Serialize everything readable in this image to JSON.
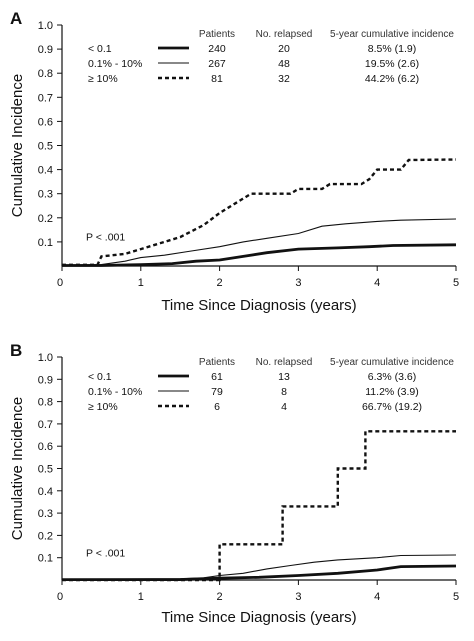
{
  "colors": {
    "line": "#111111",
    "axis": "#111111",
    "background": "#ffffff"
  },
  "chart_data": [
    {
      "type": "line",
      "panel": "A",
      "xlabel": "Time Since Diagnosis (years)",
      "ylabel": "Cumulative Incidence",
      "xlim": [
        0,
        5
      ],
      "ylim": [
        0,
        1.0
      ],
      "x_ticks": [
        "0",
        "1",
        "2",
        "3",
        "4",
        "5"
      ],
      "y_ticks": [
        "0.1",
        "0.2",
        "0.3",
        "0.4",
        "0.5",
        "0.6",
        "0.7",
        "0.8",
        "0.9",
        "1.0"
      ],
      "grid": false,
      "pvalue": "P < .001",
      "table_headers": [
        "Patients",
        "No. relapsed",
        "5-year cumulative incidence"
      ],
      "series": [
        {
          "name": "< 0.1",
          "line_style": "thick",
          "patients": "240",
          "relapsed": "20",
          "incidence": "8.5% (1.9)",
          "points": [
            [
              0,
              0.002
            ],
            [
              0.5,
              0.002
            ],
            [
              1.0,
              0.006
            ],
            [
              1.4,
              0.01
            ],
            [
              1.7,
              0.02
            ],
            [
              2.0,
              0.025
            ],
            [
              2.3,
              0.04
            ],
            [
              2.6,
              0.055
            ],
            [
              3.0,
              0.07
            ],
            [
              3.5,
              0.075
            ],
            [
              3.9,
              0.08
            ],
            [
              4.2,
              0.085
            ],
            [
              5,
              0.088
            ]
          ]
        },
        {
          "name": "0.1% - 10%",
          "line_style": "thin",
          "patients": "267",
          "relapsed": "48",
          "incidence": "19.5% (2.6)",
          "points": [
            [
              0,
              0.004
            ],
            [
              0.5,
              0.006
            ],
            [
              0.8,
              0.02
            ],
            [
              1.0,
              0.035
            ],
            [
              1.3,
              0.045
            ],
            [
              1.6,
              0.06
            ],
            [
              2.0,
              0.08
            ],
            [
              2.3,
              0.1
            ],
            [
              2.6,
              0.115
            ],
            [
              3.0,
              0.135
            ],
            [
              3.3,
              0.165
            ],
            [
              3.6,
              0.175
            ],
            [
              4.0,
              0.185
            ],
            [
              4.3,
              0.19
            ],
            [
              5,
              0.195
            ]
          ]
        },
        {
          "name": "≥ 10%",
          "line_style": "dashed",
          "patients": "81",
          "relapsed": "32",
          "incidence": "44.2% (6.2)",
          "points": [
            [
              0,
              0.005
            ],
            [
              0.45,
              0.005
            ],
            [
              0.5,
              0.04
            ],
            [
              0.8,
              0.05
            ],
            [
              1.0,
              0.07
            ],
            [
              1.2,
              0.09
            ],
            [
              1.5,
              0.12
            ],
            [
              1.8,
              0.17
            ],
            [
              2.0,
              0.22
            ],
            [
              2.2,
              0.26
            ],
            [
              2.4,
              0.3
            ],
            [
              2.9,
              0.3
            ],
            [
              3.0,
              0.32
            ],
            [
              3.3,
              0.32
            ],
            [
              3.4,
              0.34
            ],
            [
              3.8,
              0.34
            ],
            [
              3.9,
              0.36
            ],
            [
              4.0,
              0.4
            ],
            [
              4.3,
              0.4
            ],
            [
              4.4,
              0.44
            ],
            [
              5,
              0.442
            ]
          ]
        }
      ]
    },
    {
      "type": "line",
      "panel": "B",
      "xlabel": "Time Since Diagnosis (years)",
      "ylabel": "Cumulative Incidence",
      "xlim": [
        0,
        5
      ],
      "ylim": [
        0,
        1.0
      ],
      "x_ticks": [
        "0",
        "1",
        "2",
        "3",
        "4",
        "5"
      ],
      "y_ticks": [
        "0.1",
        "0.2",
        "0.3",
        "0.4",
        "0.5",
        "0.6",
        "0.7",
        "0.8",
        "0.9",
        "1.0"
      ],
      "grid": false,
      "pvalue": "P < .001",
      "table_headers": [
        "Patients",
        "No. relapsed",
        "5-year cumulative incidence"
      ],
      "series": [
        {
          "name": "< 0.1",
          "line_style": "thick",
          "patients": "61",
          "relapsed": "13",
          "incidence": "6.3% (3.6)",
          "points": [
            [
              0,
              0.002
            ],
            [
              1.5,
              0.002
            ],
            [
              2.0,
              0.008
            ],
            [
              2.5,
              0.012
            ],
            [
              3.0,
              0.02
            ],
            [
              3.5,
              0.03
            ],
            [
              4.0,
              0.045
            ],
            [
              4.3,
              0.06
            ],
            [
              5,
              0.063
            ]
          ]
        },
        {
          "name": "0.1% - 10%",
          "line_style": "thin",
          "patients": "79",
          "relapsed": "8",
          "incidence": "11.2% (3.9)",
          "points": [
            [
              0,
              0.004
            ],
            [
              1.5,
              0.006
            ],
            [
              1.8,
              0.01
            ],
            [
              2.0,
              0.02
            ],
            [
              2.3,
              0.03
            ],
            [
              2.6,
              0.05
            ],
            [
              2.9,
              0.065
            ],
            [
              3.2,
              0.08
            ],
            [
              3.5,
              0.09
            ],
            [
              4.0,
              0.1
            ],
            [
              4.3,
              0.11
            ],
            [
              5,
              0.112
            ]
          ]
        },
        {
          "name": "≥ 10%",
          "line_style": "dashed",
          "patients": "6",
          "relapsed": "4",
          "incidence": "66.7% (19.2)",
          "points": [
            [
              0,
              0
            ],
            [
              2.0,
              0
            ],
            [
              2.0,
              0.16
            ],
            [
              2.8,
              0.16
            ],
            [
              2.8,
              0.33
            ],
            [
              3.5,
              0.33
            ],
            [
              3.5,
              0.5
            ],
            [
              3.85,
              0.5
            ],
            [
              3.85,
              0.667
            ],
            [
              5,
              0.667
            ]
          ]
        }
      ]
    }
  ]
}
